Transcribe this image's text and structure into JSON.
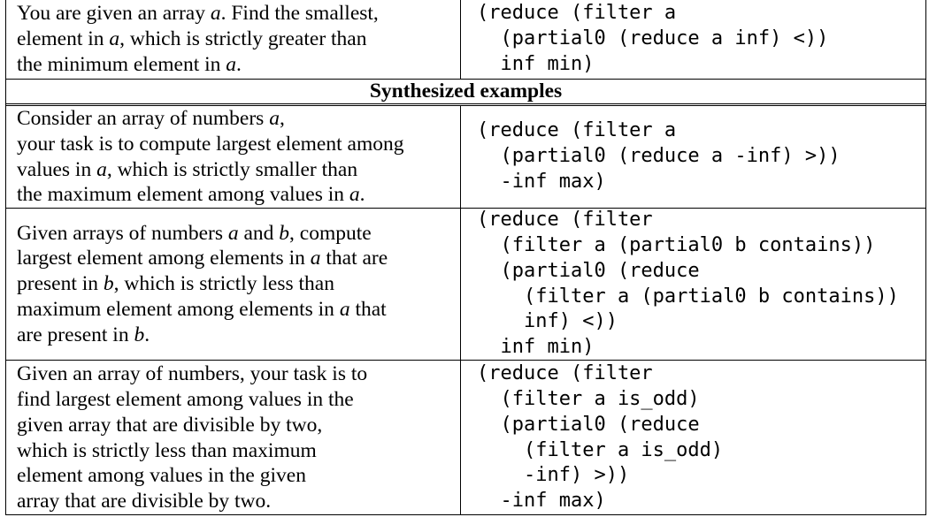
{
  "rows_top": [
    {
      "description": [
        "You are given an array \u0001a\u0001. Find the smallest,",
        "element in \u0001a\u0001, which is strictly greater than",
        "the minimum element in \u0001a\u0001."
      ],
      "program": [
        "(reduce (filter a",
        "  (partial0 (reduce a inf) <))",
        "  inf min)"
      ]
    }
  ],
  "section_title": "Synthesized examples",
  "rows_synth": [
    {
      "description": [
        "Consider an array of numbers \u0001a\u0001,",
        "your task is to compute largest element among",
        "values in \u0001a\u0001, which is strictly smaller than",
        "the maximum element among values in \u0001a\u0001."
      ],
      "program": [
        "(reduce (filter a",
        "  (partial0 (reduce a -inf) >))",
        "  -inf max)"
      ]
    },
    {
      "description": [
        "Given arrays of numbers \u0001a\u0001 and \u0001b\u0001, compute",
        "largest element among elements in \u0001a\u0001 that are",
        "present in \u0001b\u0001, which is strictly less than",
        "maximum element among elements in \u0001a\u0001 that",
        "are present in \u0001b\u0001."
      ],
      "program": [
        "(reduce (filter",
        "  (filter a (partial0 b contains))",
        "  (partial0 (reduce",
        "    (filter a (partial0 b contains))",
        "    inf) <))",
        "  inf min)"
      ]
    },
    {
      "description": [
        "Given an array of numbers, your task is to",
        "find largest element among values in the",
        "given array that are divisible by two,",
        "which is strictly less than maximum",
        "element among values in the given",
        "array that are divisible by two."
      ],
      "program": [
        "(reduce (filter",
        "  (filter a is_odd)",
        "  (partial0 (reduce",
        "    (filter a is_odd)",
        "    -inf) >))",
        "  -inf max)"
      ]
    }
  ]
}
